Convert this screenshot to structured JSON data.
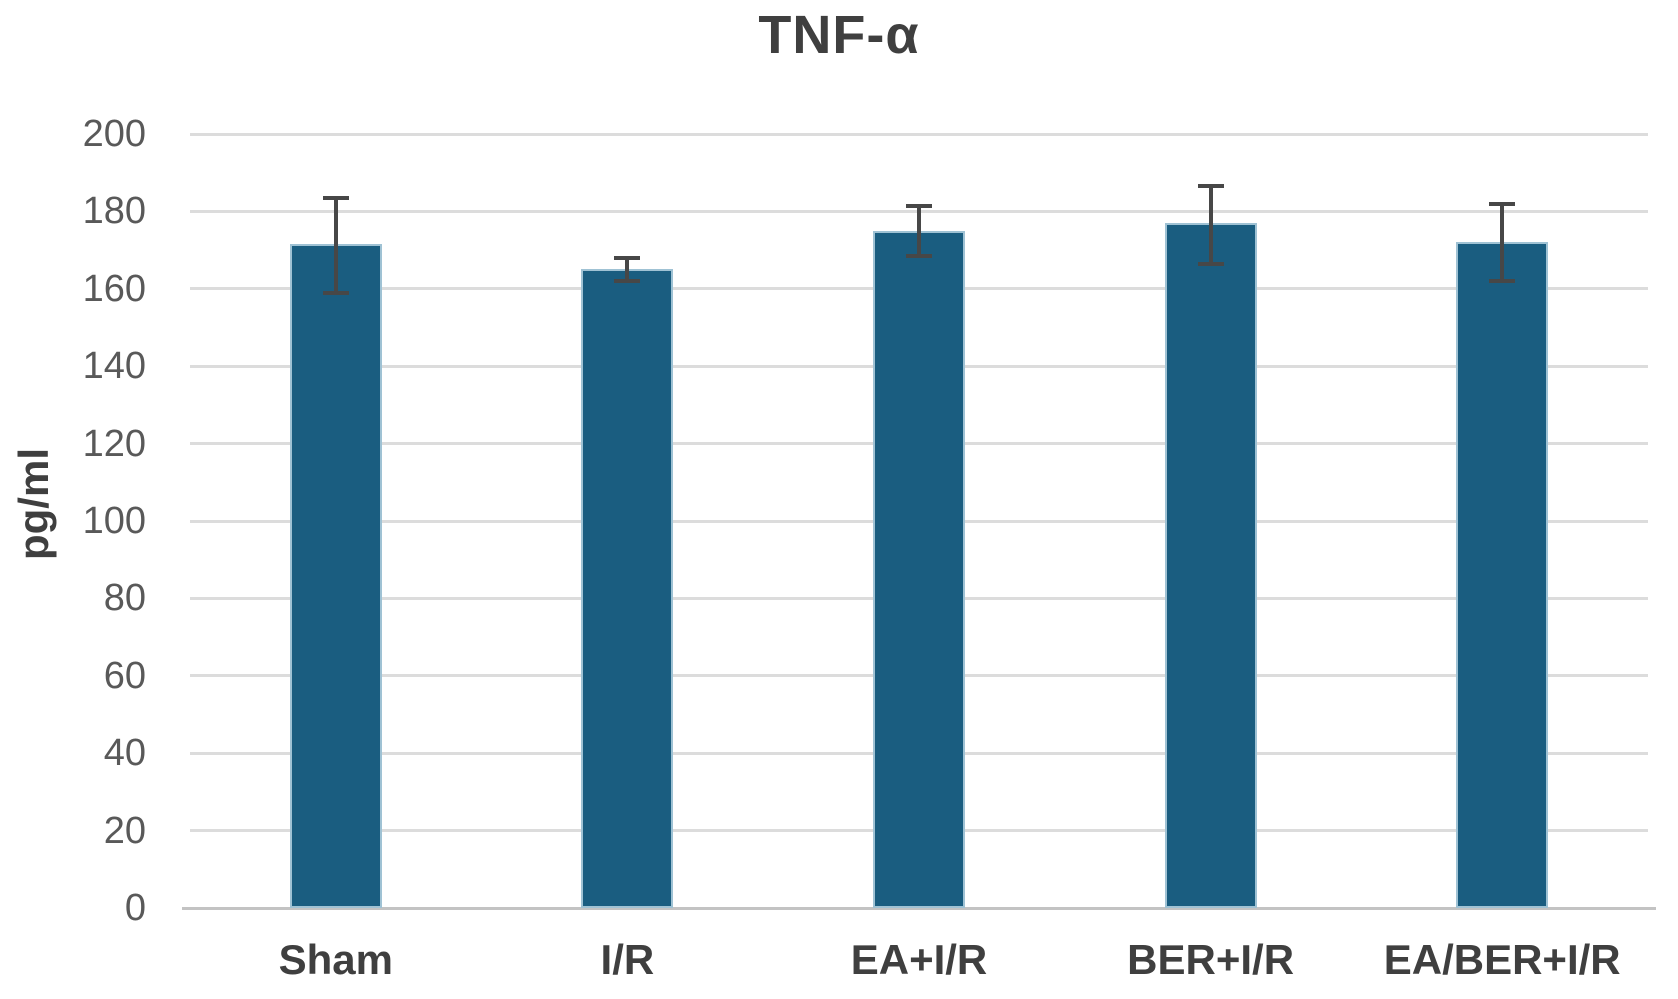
{
  "page": {
    "background": "#ffffff"
  },
  "chart_data": {
    "type": "bar",
    "title": "TNF-α",
    "ylabel": "pg/ml",
    "xlabel": "",
    "categories": [
      "Sham",
      "I/R",
      "EA+I/R",
      "BER+I/R",
      "EA/BER+I/R"
    ],
    "values": [
      171.5,
      165,
      175,
      177,
      172
    ],
    "error_bars": {
      "upper": [
        183.5,
        168,
        181.5,
        186.5,
        182
      ],
      "lower": [
        159,
        162,
        168.5,
        166.5,
        162
      ]
    },
    "ylim": [
      0,
      200
    ],
    "ytick_step": 20,
    "ytick_labels": [
      "0",
      "20",
      "40",
      "60",
      "80",
      "100",
      "120",
      "140",
      "160",
      "180",
      "200"
    ],
    "grid": "horizontal",
    "legend": "none",
    "colors": {
      "bar": "#1a5d80",
      "bar_border": "#9fc2d4",
      "gridline": "#dcdcdc",
      "axis_line": "#c3c3c3",
      "error_bar": "#474747",
      "tick_text": "#595959",
      "category_text": "#3f3f3f",
      "title_text": "#3f3f3f"
    }
  }
}
